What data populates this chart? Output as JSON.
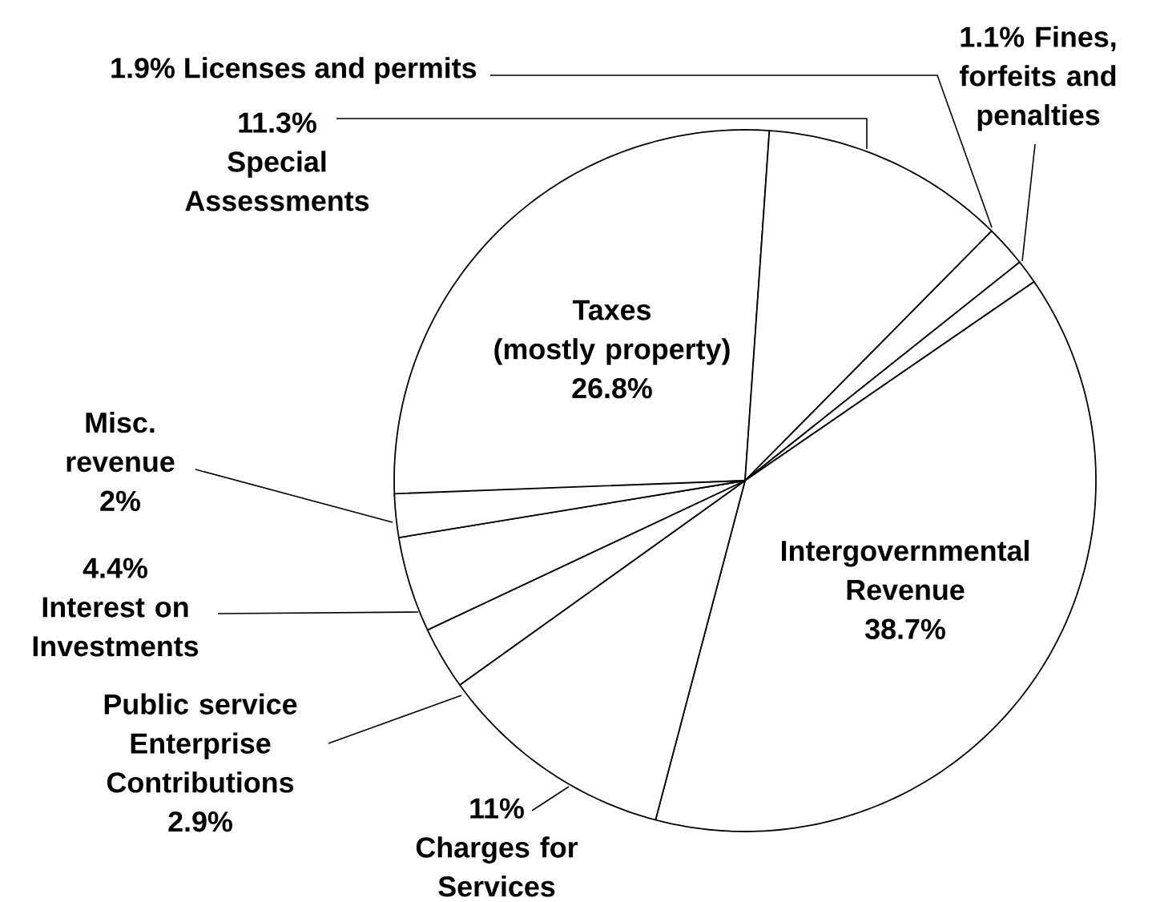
{
  "chart_data": {
    "type": "pie",
    "categories": [
      "Taxes (mostly property)",
      "Special Assessments",
      "Licenses and permits",
      "Fines, forfeits and penalties",
      "Intergovernmental Revenue",
      "Charges for Services",
      "Public service Enterprise Contributions",
      "Interest on Investments",
      "Misc. revenue"
    ],
    "values": [
      26.8,
      11.3,
      1.9,
      1.1,
      38.7,
      11,
      2.9,
      4.4,
      2
    ],
    "value_labels": [
      "26.8%",
      "11.3%",
      "1.9%",
      "1.1%",
      "38.7%",
      "11%",
      "2.9%",
      "4.4%",
      "2%"
    ],
    "colors": [
      "#ffffff",
      "#ffffff",
      "#ffffff",
      "#ffffff",
      "#ffffff",
      "#ffffff",
      "#ffffff",
      "#ffffff",
      "#ffffff"
    ]
  }
}
